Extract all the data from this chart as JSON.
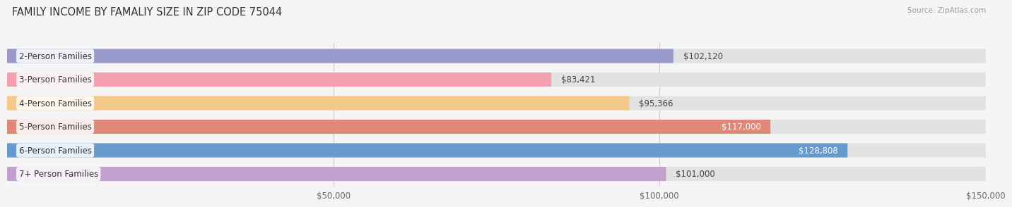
{
  "title": "FAMILY INCOME BY FAMALIY SIZE IN ZIP CODE 75044",
  "source": "Source: ZipAtlas.com",
  "categories": [
    "2-Person Families",
    "3-Person Families",
    "4-Person Families",
    "5-Person Families",
    "6-Person Families",
    "7+ Person Families"
  ],
  "values": [
    102120,
    83421,
    95366,
    117000,
    128808,
    101000
  ],
  "labels": [
    "$102,120",
    "$83,421",
    "$95,366",
    "$117,000",
    "$128,808",
    "$101,000"
  ],
  "bar_colors": [
    "#9999cc",
    "#f4a0b0",
    "#f5c989",
    "#e08878",
    "#6699cc",
    "#c4a0d0"
  ],
  "bar_bg_color": "#e2e2e2",
  "label_colors": [
    "#444444",
    "#444444",
    "#444444",
    "#ffffff",
    "#ffffff",
    "#444444"
  ],
  "xmax": 150000,
  "xtick_vals": [
    50000,
    100000,
    150000
  ],
  "xtick_labels": [
    "$50,000",
    "$100,000",
    "$150,000"
  ],
  "background_color": "#f5f5f5",
  "title_fontsize": 10.5,
  "bar_height": 0.6,
  "label_fontsize": 8.5,
  "cat_fontsize": 8.5
}
